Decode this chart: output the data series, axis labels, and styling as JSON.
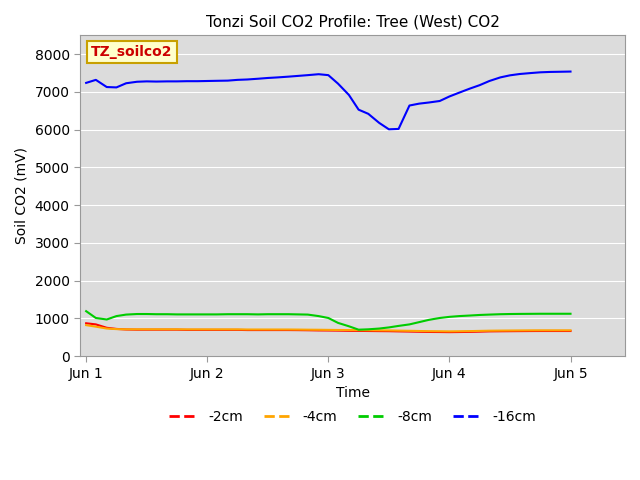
{
  "title": "Tonzi Soil CO2 Profile: Tree (West) CO2",
  "xlabel": "Time",
  "ylabel": "Soil CO2 (mV)",
  "ylim": [
    0,
    8500
  ],
  "yticks": [
    0,
    1000,
    2000,
    3000,
    4000,
    5000,
    6000,
    7000,
    8000
  ],
  "plot_bg": "#dcdcdc",
  "fig_bg": "#ffffff",
  "legend_label": "TZ_soilco2",
  "legend_bg": "#ffffcc",
  "legend_border": "#c8a000",
  "series": {
    "-2cm": {
      "color": "#ff0000",
      "x": [
        0.0,
        0.08,
        0.17,
        0.25,
        0.33,
        0.42,
        0.5,
        0.58,
        0.67,
        0.75,
        0.83,
        0.92,
        1.0,
        1.08,
        1.17,
        1.25,
        1.33,
        1.42,
        1.5,
        1.58,
        1.67,
        1.75,
        1.83,
        1.92,
        2.0,
        2.08,
        2.17,
        2.25,
        2.33,
        2.42,
        2.5,
        2.58,
        2.67,
        2.75,
        2.83,
        2.92,
        3.0,
        3.08,
        3.17,
        3.25,
        3.33,
        3.42,
        3.5,
        3.58,
        3.67,
        3.75,
        3.83,
        3.92,
        4.0
      ],
      "y": [
        870,
        840,
        750,
        720,
        705,
        700,
        700,
        700,
        700,
        700,
        695,
        695,
        695,
        695,
        695,
        695,
        690,
        690,
        690,
        690,
        690,
        688,
        685,
        680,
        678,
        675,
        670,
        668,
        665,
        662,
        660,
        655,
        650,
        645,
        640,
        638,
        635,
        638,
        642,
        648,
        655,
        658,
        660,
        662,
        664,
        665,
        665,
        665,
        665
      ]
    },
    "-4cm": {
      "color": "#ffa500",
      "x": [
        0.0,
        0.08,
        0.17,
        0.25,
        0.33,
        0.42,
        0.5,
        0.58,
        0.67,
        0.75,
        0.83,
        0.92,
        1.0,
        1.08,
        1.17,
        1.25,
        1.33,
        1.42,
        1.5,
        1.58,
        1.67,
        1.75,
        1.83,
        1.92,
        2.0,
        2.08,
        2.17,
        2.25,
        2.33,
        2.42,
        2.5,
        2.58,
        2.67,
        2.75,
        2.83,
        2.92,
        3.0,
        3.08,
        3.17,
        3.25,
        3.33,
        3.42,
        3.5,
        3.58,
        3.67,
        3.75,
        3.83,
        3.92,
        4.0
      ],
      "y": [
        820,
        780,
        730,
        715,
        710,
        710,
        710,
        710,
        710,
        710,
        708,
        708,
        708,
        708,
        708,
        708,
        705,
        705,
        705,
        705,
        705,
        703,
        700,
        698,
        695,
        692,
        690,
        688,
        685,
        682,
        680,
        675,
        670,
        665,
        660,
        658,
        655,
        658,
        662,
        668,
        673,
        676,
        678,
        680,
        682,
        683,
        683,
        683,
        683
      ]
    },
    "-8cm": {
      "color": "#00cc00",
      "x": [
        0.0,
        0.08,
        0.17,
        0.25,
        0.33,
        0.42,
        0.5,
        0.58,
        0.67,
        0.75,
        0.83,
        0.92,
        1.0,
        1.08,
        1.17,
        1.25,
        1.33,
        1.42,
        1.5,
        1.58,
        1.67,
        1.75,
        1.83,
        1.92,
        2.0,
        2.08,
        2.17,
        2.25,
        2.33,
        2.42,
        2.5,
        2.58,
        2.67,
        2.75,
        2.83,
        2.92,
        3.0,
        3.08,
        3.17,
        3.25,
        3.33,
        3.42,
        3.5,
        3.58,
        3.67,
        3.75,
        3.83,
        3.92,
        4.0
      ],
      "y": [
        1190,
        1010,
        970,
        1060,
        1100,
        1115,
        1115,
        1110,
        1110,
        1105,
        1105,
        1105,
        1105,
        1105,
        1110,
        1110,
        1110,
        1105,
        1110,
        1110,
        1110,
        1105,
        1100,
        1060,
        1010,
        880,
        790,
        700,
        710,
        730,
        760,
        800,
        840,
        900,
        960,
        1010,
        1040,
        1060,
        1075,
        1090,
        1100,
        1110,
        1115,
        1118,
        1120,
        1122,
        1122,
        1122,
        1122
      ]
    },
    "-16cm": {
      "color": "#0000ff",
      "x": [
        0.0,
        0.08,
        0.17,
        0.25,
        0.33,
        0.42,
        0.5,
        0.58,
        0.67,
        0.75,
        0.83,
        0.92,
        1.0,
        1.08,
        1.17,
        1.25,
        1.33,
        1.42,
        1.5,
        1.58,
        1.67,
        1.75,
        1.83,
        1.92,
        2.0,
        2.08,
        2.17,
        2.25,
        2.33,
        2.42,
        2.5,
        2.58,
        2.67,
        2.75,
        2.83,
        2.92,
        3.0,
        3.08,
        3.17,
        3.25,
        3.33,
        3.42,
        3.5,
        3.58,
        3.67,
        3.75,
        3.83,
        3.92,
        4.0
      ],
      "y": [
        7240,
        7320,
        7130,
        7120,
        7230,
        7270,
        7280,
        7275,
        7280,
        7280,
        7285,
        7285,
        7290,
        7295,
        7300,
        7320,
        7330,
        7350,
        7370,
        7385,
        7405,
        7425,
        7445,
        7470,
        7445,
        7220,
        6920,
        6530,
        6420,
        6180,
        6010,
        6020,
        6640,
        6690,
        6720,
        6760,
        6880,
        6980,
        7090,
        7180,
        7290,
        7385,
        7440,
        7475,
        7500,
        7520,
        7530,
        7535,
        7540
      ]
    }
  },
  "xtick_positions": [
    0,
    1,
    2,
    3,
    4
  ],
  "xticklabels": [
    "Jun 1",
    "Jun 2",
    "Jun 3",
    "Jun 4",
    "Jun 5"
  ],
  "xlim": [
    -0.05,
    4.45
  ],
  "linewidth": 1.5,
  "legend_entries": [
    "-2cm",
    "-4cm",
    "-8cm",
    "-16cm"
  ],
  "legend_colors": [
    "#ff0000",
    "#ffa500",
    "#00cc00",
    "#0000ff"
  ]
}
